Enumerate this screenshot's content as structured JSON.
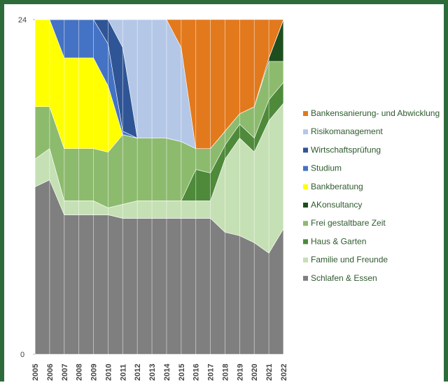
{
  "chart_data": {
    "type": "stacked_area",
    "categories": [
      "2005",
      "2006",
      "2007",
      "2008",
      "2009",
      "2010",
      "2011",
      "2012",
      "2013",
      "2014",
      "2015",
      "2016",
      "2017",
      "2018",
      "2019",
      "2020",
      "2021",
      "2022"
    ],
    "ylim": [
      0,
      24
    ],
    "yticks": [
      0,
      24
    ],
    "legend": "right",
    "series": [
      {
        "name": "Bankensanierung- und Abwicklung",
        "color": "#e2791d",
        "values": [
          0,
          0,
          0,
          0,
          0,
          0,
          0,
          0,
          0,
          0,
          2,
          9.25,
          9.25,
          8,
          6.75,
          6.25,
          2.75,
          0
        ]
      },
      {
        "name": "Risikomanagement",
        "color": "#b4c7e7",
        "values": [
          0,
          0,
          0,
          0,
          0,
          0,
          2,
          8.5,
          8.5,
          8.5,
          6.75,
          0,
          0,
          0,
          0,
          0,
          0,
          0
        ]
      },
      {
        "name": "Wirtschaftsprüfung",
        "color": "#2f5597",
        "values": [
          0,
          0,
          0,
          0,
          0,
          1.75,
          6,
          0,
          0,
          0,
          0,
          0,
          0,
          0,
          0,
          0,
          0,
          0
        ]
      },
      {
        "name": "Studium",
        "color": "#4472c4",
        "values": [
          0,
          0,
          2.75,
          2.75,
          2.75,
          3,
          0.25,
          0,
          0,
          0,
          0,
          0,
          0,
          0,
          0,
          0,
          0,
          0
        ]
      },
      {
        "name": "Bankberatung",
        "color": "#ffff00",
        "values": [
          6.25,
          6.25,
          6.5,
          6.5,
          6.5,
          4.75,
          0,
          0,
          0,
          0,
          0,
          0,
          0,
          0,
          0,
          0,
          0,
          0
        ]
      },
      {
        "name": "AKonsultancy",
        "color": "#1e4d1e",
        "values": [
          0,
          0,
          0,
          0,
          0,
          0,
          0,
          0,
          0,
          0,
          0,
          0,
          0,
          0,
          0,
          0,
          0.25,
          3
        ]
      },
      {
        "name": "Frei gestaltbare Zeit",
        "color": "#8dbb6e",
        "values": [
          3.75,
          3,
          3.75,
          3.75,
          3.75,
          4,
          5,
          4.5,
          4.5,
          4.5,
          4.25,
          1.5,
          1.75,
          1,
          0.75,
          2.25,
          2.75,
          1.5
        ]
      },
      {
        "name": "Haus & Garten",
        "color": "#4e8a3a",
        "values": [
          0,
          0,
          0,
          0,
          0,
          0,
          0,
          0,
          0,
          0,
          0,
          2.25,
          2,
          1,
          1,
          1,
          1.5,
          1.5
        ]
      },
      {
        "name": "Familie und Freunde",
        "color": "#c5e0b4",
        "values": [
          2,
          2.25,
          1,
          1,
          1,
          0.5,
          1,
          1.25,
          1.25,
          1.25,
          1.25,
          1.25,
          1.25,
          5.25,
          7,
          6.5,
          9.5,
          9
        ]
      },
      {
        "name": "Schlafen & Essen",
        "color": "#7f7f7f",
        "values": [
          12,
          12.5,
          10,
          10,
          10,
          10,
          9.75,
          9.75,
          9.75,
          9.75,
          9.75,
          9.75,
          9.75,
          8.75,
          8.5,
          8,
          7.25,
          9
        ]
      }
    ]
  }
}
